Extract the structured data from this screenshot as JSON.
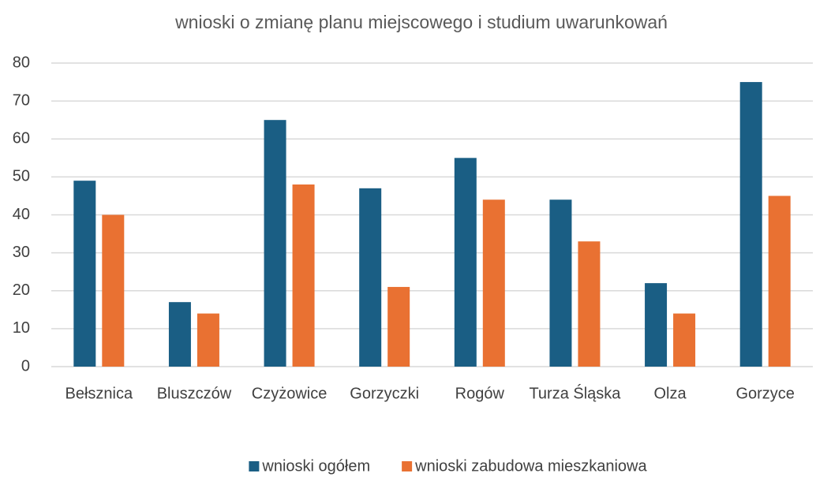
{
  "chart_data": {
    "type": "bar",
    "title": "wnioski o zmianę planu miejscowego i studium uwarunkowań",
    "categories": [
      "Bełsznica",
      "Bluszczów",
      "Czyżowice",
      "Gorzyczki",
      "Rogów",
      "Turza Śląska",
      "Olza",
      "Gorzyce"
    ],
    "series": [
      {
        "name": "wnioski ogółem",
        "color": "#1a5e84",
        "values": [
          49,
          17,
          65,
          47,
          55,
          44,
          22,
          75
        ]
      },
      {
        "name": "wnioski zabudowa mieszkaniowa",
        "color": "#e97132",
        "values": [
          40,
          14,
          48,
          21,
          44,
          33,
          14,
          45
        ]
      }
    ],
    "ylim": [
      0,
      80
    ],
    "yticks": [
      0,
      10,
      20,
      30,
      40,
      50,
      60,
      70,
      80
    ],
    "grid": true,
    "legend": "bottom"
  }
}
